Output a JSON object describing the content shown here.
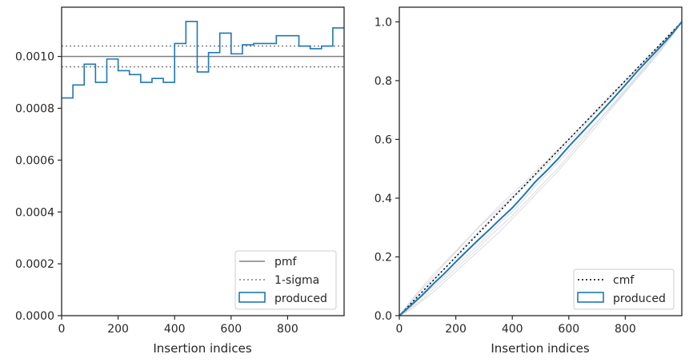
{
  "chart_data": [
    {
      "type": "step",
      "xlabel": "Insertion indices",
      "ylabel": "",
      "xlim": [
        0,
        1000
      ],
      "ylim": [
        0,
        0.00119
      ],
      "xticks": [
        0,
        200,
        400,
        600,
        800
      ],
      "yticks": [
        0,
        0.0002,
        0.0004,
        0.0006,
        0.0008,
        0.001
      ],
      "ytick_labels": [
        "0.0000",
        "0.0002",
        "0.0004",
        "0.0006",
        "0.0008",
        "0.0010"
      ],
      "pmf": 0.001,
      "sigma_band": [
        0.00096,
        0.00104
      ],
      "bin_edges": [
        0,
        40,
        80,
        120,
        160,
        200,
        240,
        280,
        320,
        360,
        400,
        440,
        480,
        520,
        560,
        600,
        640,
        680,
        720,
        760,
        800,
        840,
        880,
        920,
        960,
        1000
      ],
      "produced": [
        0.00084,
        0.00089,
        0.00097,
        0.0009,
        0.00099,
        0.000945,
        0.00093,
        0.0009,
        0.000915,
        0.0009,
        0.00105,
        0.001135,
        0.00094,
        0.001015,
        0.00109,
        0.00101,
        0.001045,
        0.00105,
        0.00105,
        0.00108,
        0.00108,
        0.00104,
        0.00103,
        0.00104,
        0.00111
      ],
      "legend": [
        {
          "label": "pmf",
          "style": "solid",
          "color": "#808080"
        },
        {
          "label": "1-sigma",
          "style": "dotted",
          "color": "#808080"
        },
        {
          "label": "produced",
          "style": "patch",
          "color": "#1f77b4"
        }
      ],
      "legend_position": "lower-right"
    },
    {
      "type": "line",
      "xlabel": "Insertion indices",
      "ylabel": "",
      "xlim": [
        0,
        1000
      ],
      "ylim": [
        0,
        1.05
      ],
      "xticks": [
        0,
        200,
        400,
        600,
        800
      ],
      "yticks": [
        0,
        0.2,
        0.4,
        0.6,
        0.8,
        1.0
      ],
      "ytick_labels": [
        "0.0",
        "0.2",
        "0.4",
        "0.6",
        "0.8",
        "1.0"
      ],
      "x": [
        0,
        40,
        80,
        120,
        160,
        200,
        240,
        280,
        320,
        360,
        400,
        440,
        480,
        520,
        560,
        600,
        640,
        680,
        720,
        760,
        800,
        840,
        880,
        920,
        960,
        1000
      ],
      "produced_cdf": [
        0,
        0.034,
        0.069,
        0.108,
        0.144,
        0.183,
        0.221,
        0.258,
        0.294,
        0.331,
        0.367,
        0.409,
        0.454,
        0.492,
        0.532,
        0.576,
        0.617,
        0.658,
        0.7,
        0.742,
        0.785,
        0.829,
        0.87,
        0.911,
        0.953,
        1.0
      ],
      "cmf": [
        0,
        1.0
      ],
      "background_samples": [
        [
          0,
          0.045,
          0.09,
          0.13,
          0.175,
          0.215,
          0.26,
          0.3,
          0.34,
          0.38,
          0.415,
          0.45,
          0.49,
          0.525,
          0.565,
          0.6,
          0.64,
          0.68,
          0.72,
          0.76,
          0.8,
          0.84,
          0.88,
          0.92,
          0.96,
          1.0
        ],
        [
          0,
          0.025,
          0.055,
          0.09,
          0.125,
          0.16,
          0.195,
          0.23,
          0.27,
          0.305,
          0.34,
          0.38,
          0.42,
          0.46,
          0.5,
          0.545,
          0.59,
          0.635,
          0.68,
          0.72,
          0.765,
          0.81,
          0.855,
          0.9,
          0.95,
          1.0
        ],
        [
          0,
          0.04,
          0.08,
          0.12,
          0.16,
          0.2,
          0.245,
          0.285,
          0.325,
          0.365,
          0.4,
          0.435,
          0.475,
          0.51,
          0.55,
          0.59,
          0.63,
          0.675,
          0.715,
          0.755,
          0.795,
          0.835,
          0.875,
          0.915,
          0.955,
          1.0
        ],
        [
          0,
          0.03,
          0.065,
          0.1,
          0.135,
          0.17,
          0.205,
          0.24,
          0.28,
          0.32,
          0.355,
          0.395,
          0.44,
          0.48,
          0.52,
          0.56,
          0.6,
          0.64,
          0.68,
          0.725,
          0.77,
          0.815,
          0.86,
          0.905,
          0.95,
          1.0
        ],
        [
          0,
          0.05,
          0.095,
          0.14,
          0.18,
          0.22,
          0.26,
          0.3,
          0.335,
          0.37,
          0.405,
          0.44,
          0.48,
          0.52,
          0.56,
          0.6,
          0.64,
          0.68,
          0.72,
          0.76,
          0.8,
          0.84,
          0.88,
          0.92,
          0.96,
          1.0
        ],
        [
          0,
          0.02,
          0.05,
          0.08,
          0.115,
          0.15,
          0.185,
          0.22,
          0.255,
          0.29,
          0.33,
          0.37,
          0.41,
          0.45,
          0.49,
          0.535,
          0.58,
          0.625,
          0.67,
          0.715,
          0.76,
          0.805,
          0.85,
          0.895,
          0.945,
          1.0
        ]
      ],
      "legend": [
        {
          "label": "cmf",
          "style": "dotted",
          "color": "#000000"
        },
        {
          "label": "produced",
          "style": "patch",
          "color": "#1f77b4"
        }
      ],
      "legend_position": "lower-right"
    }
  ]
}
